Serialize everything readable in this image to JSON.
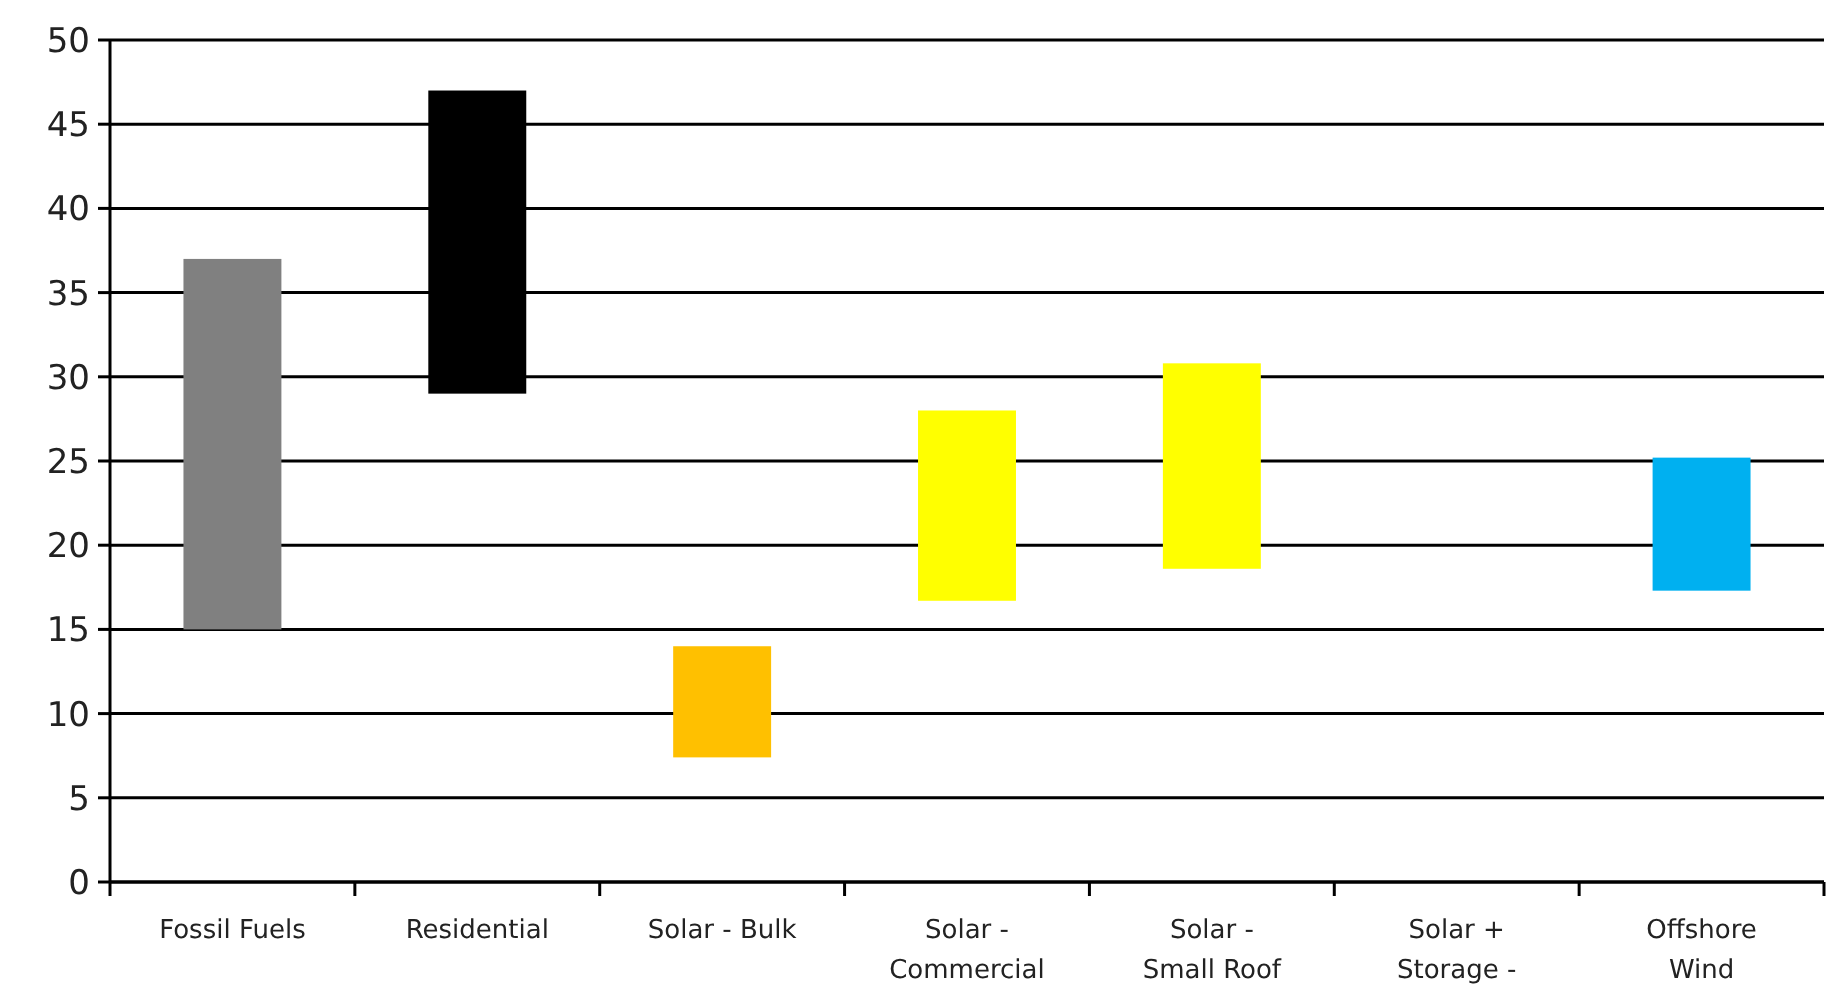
{
  "chart_data": {
    "type": "bar",
    "categories": [
      "Fossil Fuels",
      "Residential",
      "Solar - Bulk",
      "Solar - Commercial",
      "Solar - Small Roof",
      "Solar + Storage -",
      "Offshore Wind"
    ],
    "base": [
      15,
      29,
      7.4,
      16.7,
      18.6,
      null,
      17.3
    ],
    "values": [
      22,
      18,
      6.6,
      11.3,
      12.2,
      null,
      7.9
    ],
    "colors": [
      "#808080",
      "#000000",
      "#ffc000",
      "#ffff00",
      "#ffff00",
      null,
      "#00b0f0"
    ],
    "ylim": [
      0,
      50
    ],
    "yticks": [
      0,
      5,
      10,
      15,
      20,
      25,
      30,
      35,
      40,
      45,
      50
    ],
    "grid": "y"
  }
}
